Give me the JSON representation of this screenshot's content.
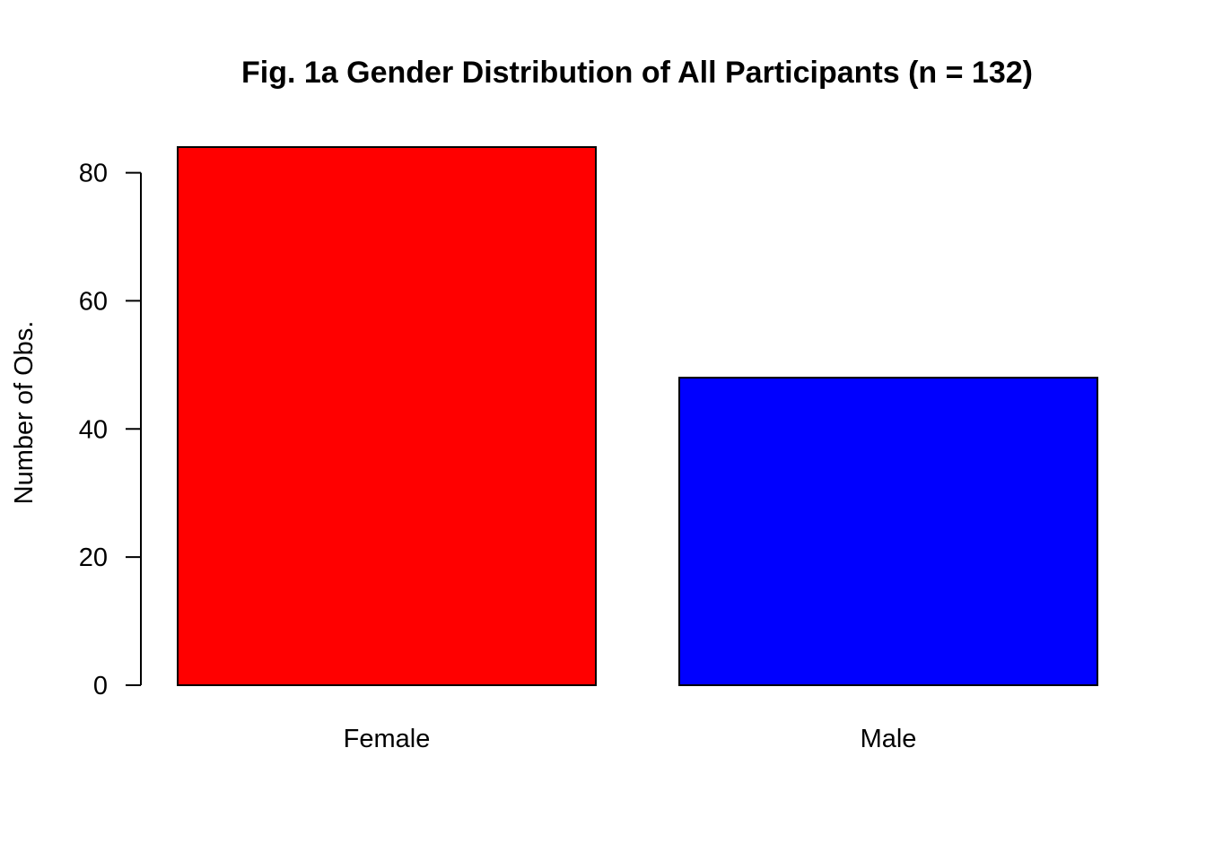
{
  "chart_data": {
    "type": "bar",
    "title": "Fig. 1a Gender Distribution of All Participants (n = 132)",
    "xlabel": "",
    "ylabel": "Number of Obs.",
    "categories": [
      "Female",
      "Male"
    ],
    "values": [
      84,
      48
    ],
    "colors": [
      "#ff0000",
      "#0000ff"
    ],
    "ylim": [
      0,
      84
    ],
    "yticks": [
      0,
      20,
      40,
      60,
      80
    ],
    "grid": false
  }
}
